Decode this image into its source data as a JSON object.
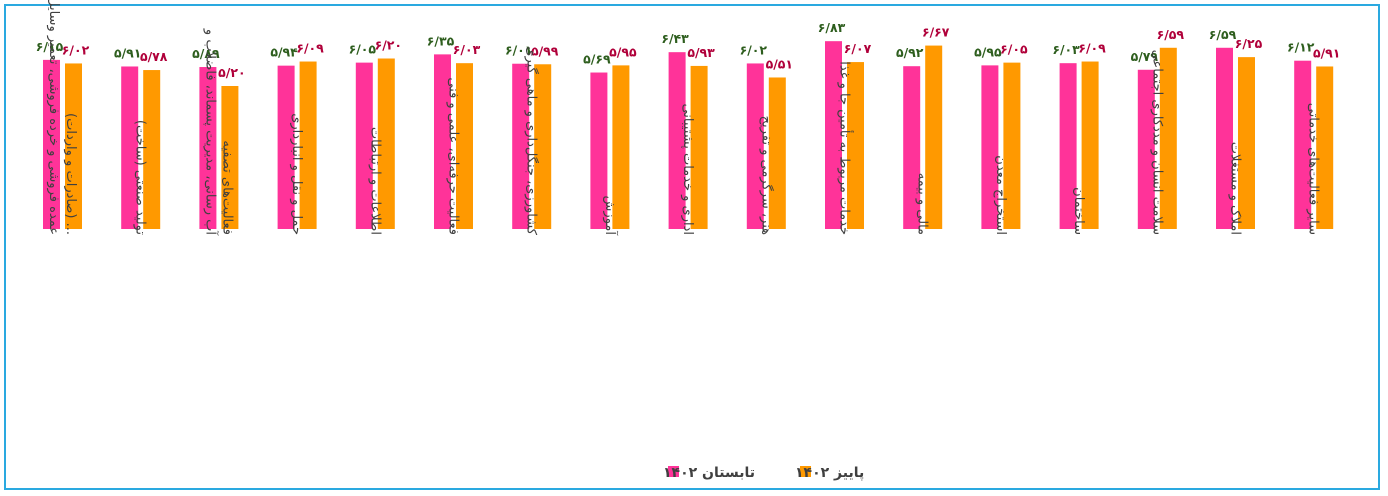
{
  "chart_data": {
    "type": "bar",
    "title": "",
    "xlabel": "",
    "ylabel": "",
    "ylim": [
      0,
      7
    ],
    "grid": false,
    "legend_position": "bottom",
    "categories": [
      [
        "عمده فروشی و خرده فروشی، تعمیر وسایل و",
        "... (صادرات و واردات)"
      ],
      [
        "تولید صنعتی (ساخت)"
      ],
      [
        "آب رسانی، مدیریت پسماند، فاضلاب و",
        "فعالیت‌های تصفیه"
      ],
      [
        "حمل و نقل و انبارداری"
      ],
      [
        "اطلاعات و ارتباطات"
      ],
      [
        "فعالیت حرفه‌ای، علمی و فنی"
      ],
      [
        "کشاورزی، جنگل‌داری و ماهی گیری"
      ],
      [
        "آموزش"
      ],
      [
        "اداری و خدمات پشتیبانی"
      ],
      [
        "هنر، سرگرمی و تفریح"
      ],
      [
        "خدمات مربوط به تأمین جا و غذا"
      ],
      [
        "مالی و بیمه"
      ],
      [
        "استخراج معدن"
      ],
      [
        "ساختمان"
      ],
      [
        "سلامت انسان و مددکاری اجتماعی"
      ],
      [
        "املاک و مستغلات"
      ],
      [
        "سایر فعالیت‌های خدماتی"
      ]
    ],
    "series": [
      {
        "name": "تابستان ۱۴۰۲",
        "color": "#ff3399",
        "label_color": "#2e5e1e",
        "values": [
          6.15,
          5.91,
          5.89,
          5.94,
          6.05,
          6.35,
          6.01,
          5.69,
          6.43,
          6.02,
          6.83,
          5.92,
          5.95,
          6.03,
          5.79,
          6.59,
          6.12
        ],
        "labels": [
          "۶/۱۵",
          "۵/۹۱",
          "۵/۸۹",
          "۵/۹۴",
          "۶/۰۵",
          "۶/۳۵",
          "۶/۰۱",
          "۵/۶۹",
          "۶/۴۳",
          "۶/۰۲",
          "۶/۸۳",
          "۵/۹۲",
          "۵/۹۵",
          "۶/۰۳",
          "۵/۷۹",
          "۶/۵۹",
          "۶/۱۲"
        ]
      },
      {
        "name": "پاییز ۱۴۰۲",
        "color": "#ff9900",
        "label_color": "#b0003a",
        "values": [
          6.02,
          5.78,
          5.2,
          6.09,
          6.2,
          6.03,
          5.99,
          5.95,
          5.93,
          5.51,
          6.07,
          6.67,
          6.05,
          6.09,
          6.59,
          6.25,
          5.91
        ],
        "labels": [
          "۶/۰۲",
          "۵/۷۸",
          "۵/۲۰",
          "۶/۰۹",
          "۶/۲۰",
          "۶/۰۳",
          "۵/۹۹",
          "۵/۹۵",
          "۵/۹۳",
          "۵/۵۱",
          "۶/۰۷",
          "۶/۶۷",
          "۶/۰۵",
          "۶/۰۹",
          "۶/۵۹",
          "۶/۲۵",
          "۵/۹۱"
        ]
      }
    ]
  }
}
